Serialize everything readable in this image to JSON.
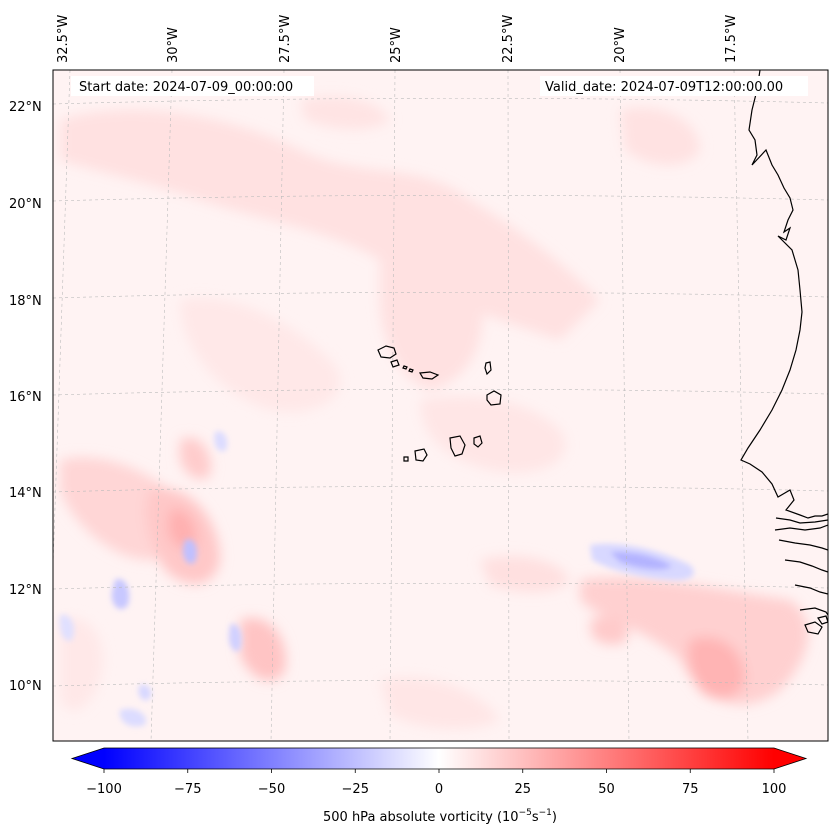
{
  "header": {
    "start_date": "Start date: 2024-07-09_00:00:00",
    "valid_date": "Valid_date: 2024-07-09T12:00:00.00"
  },
  "map": {
    "lon_labels": [
      "32.5°W",
      "30°W",
      "27.5°W",
      "25°W",
      "22.5°W",
      "20°W",
      "17.5°W"
    ],
    "lat_labels": [
      "22°N",
      "20°N",
      "18°N",
      "16°N",
      "14°N",
      "12°N",
      "10°N"
    ],
    "field": "500 hPa absolute vorticity",
    "features": [
      "cabo-verde-islands",
      "west-africa-coastline"
    ]
  },
  "colorbar": {
    "min": -100,
    "max": 100,
    "ticks": [
      "−100",
      "−75",
      "−50",
      "−25",
      "0",
      "25",
      "50",
      "75",
      "100"
    ],
    "label_main": "500 hPa absolute vorticity (10",
    "label_exp1": "−5",
    "label_mid": "s",
    "label_exp2": "−1",
    "label_end": ")",
    "colors": {
      "negative": "#0000ff",
      "neutral": "#ffffff",
      "positive": "#ff0000"
    }
  }
}
